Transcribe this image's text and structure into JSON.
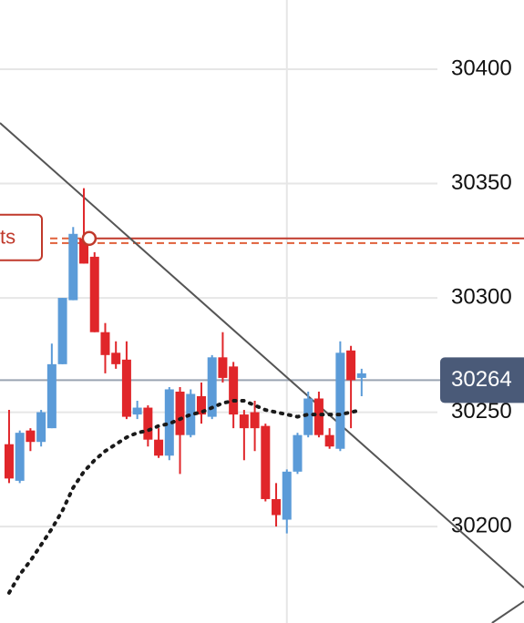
{
  "chart_data": {
    "type": "candlestick",
    "xlim": [
      -0.85,
      48.2
    ],
    "ylim": [
      30157.8,
      30430.3
    ],
    "yticks": [
      30400,
      30350,
      30300,
      30250,
      30200
    ],
    "grid": true,
    "up_color": "#5b9bd8",
    "down_color": "#e0262a",
    "open": [
      30236,
      30220,
      30242,
      30237,
      30243,
      30271,
      30299,
      30326,
      30318,
      30285,
      30276,
      30273,
      30249,
      30252,
      30238,
      30231,
      30259,
      30240,
      30257,
      30248,
      30274,
      30270,
      30249,
      30250,
      30244,
      30212,
      30203,
      30224,
      30240,
      30256,
      30240,
      30234,
      30277,
      30265
    ],
    "high": [
      30251,
      30242,
      30243,
      30251,
      30280,
      30300,
      30331,
      30348,
      30320,
      30289,
      30281,
      30281,
      30255,
      30253,
      30243,
      30261,
      30261,
      30260,
      30263,
      30275,
      30285,
      30272,
      30251,
      30255,
      30245,
      30219,
      30225,
      30241,
      30259,
      30259,
      30243,
      30281,
      30279,
      30269
    ],
    "low": [
      30219,
      30219,
      30233,
      30235,
      30243,
      30271,
      30299,
      30315,
      30285,
      30267,
      30269,
      30247,
      30247,
      30235,
      30230,
      30229,
      30223,
      30239,
      30245,
      30247,
      30263,
      30243,
      30229,
      30233,
      30211,
      30200,
      30197,
      30223,
      30239,
      30239,
      30234,
      30233,
      30243,
      30257
    ],
    "close": [
      30221,
      30241,
      30237,
      30250,
      30271,
      30300,
      30328,
      30315,
      30285,
      30275,
      30271,
      30248,
      30252,
      30238,
      30231,
      30260,
      30240,
      30258,
      30249,
      30274,
      30265,
      30249,
      30243,
      30243,
      30212,
      30205,
      30224,
      30240,
      30256,
      30240,
      30235,
      30276,
      30264,
      30267
    ],
    "moving_average": {
      "color": "#1a1a1a",
      "values": [
        30171,
        30179,
        30185,
        30192,
        30199,
        30207,
        30217,
        30224,
        30229,
        30233,
        30236,
        30239,
        30241,
        30242,
        30244,
        30245,
        30247,
        30249,
        30250,
        30252,
        30254,
        30255,
        30255,
        30253,
        30251,
        30250,
        30249,
        30248,
        30249,
        30249,
        30249,
        30249,
        30250,
        30251
      ]
    },
    "trendlines": [
      {
        "color": "#555555",
        "x": [
          -0.85,
          48.2
        ],
        "y": [
          30376.5,
          30173.3
        ]
      },
      {
        "color": "#555555",
        "x": [
          45.2,
          48.2
        ],
        "y": [
          30157.8,
          30167.3
        ]
      }
    ],
    "alert": {
      "label": "ts",
      "price": 30326,
      "dashed_price": 30324,
      "x": 7.5,
      "color": "#c0392b"
    },
    "current_price": {
      "value": 30264,
      "color": "#4a5a78"
    },
    "vertical_line_x": 26.0
  }
}
